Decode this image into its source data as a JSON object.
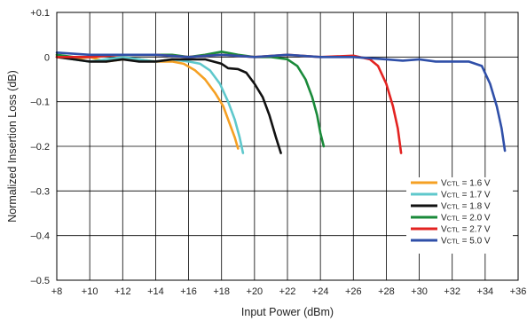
{
  "chart_data": {
    "type": "line",
    "xlabel": "Input Power (dBm)",
    "ylabel": "Normalized Insertion Loss (dB)",
    "xlim": [
      8,
      36
    ],
    "ylim": [
      -0.5,
      0.1
    ],
    "x_ticks": [
      8,
      10,
      12,
      14,
      16,
      18,
      20,
      22,
      24,
      26,
      28,
      30,
      32,
      34,
      36
    ],
    "x_tick_labels": [
      "+8",
      "+10",
      "+12",
      "+14",
      "+16",
      "+18",
      "+20",
      "+22",
      "+24",
      "+26",
      "+28",
      "+30",
      "+32",
      "+34",
      "+36"
    ],
    "y_ticks": [
      0.1,
      0,
      -0.1,
      -0.2,
      -0.3,
      -0.4,
      -0.5
    ],
    "y_tick_labels": [
      "+0.1",
      "0",
      "–0.1",
      "–0.2",
      "–0.3",
      "–0.4",
      "–0.5"
    ],
    "grid": true,
    "legend_position": "lower-right",
    "series": [
      {
        "name": "VCTL = 1.6 V",
        "label_sub": "CTL",
        "label_rest": " = 1.6 V",
        "color": "#f5a023",
        "points": [
          [
            8,
            0.005
          ],
          [
            9,
            -0.005
          ],
          [
            10,
            0.0
          ],
          [
            11,
            -0.01
          ],
          [
            12,
            -0.005
          ],
          [
            13,
            -0.005
          ],
          [
            14,
            -0.01
          ],
          [
            15,
            -0.01
          ],
          [
            15.7,
            -0.015
          ],
          [
            16.4,
            -0.03
          ],
          [
            17,
            -0.05
          ],
          [
            17.6,
            -0.08
          ],
          [
            18.1,
            -0.11
          ],
          [
            18.5,
            -0.15
          ],
          [
            18.8,
            -0.18
          ],
          [
            19.0,
            -0.205
          ]
        ]
      },
      {
        "name": "VCTL = 1.7 V",
        "label_sub": "CTL",
        "label_rest": " = 1.7 V",
        "color": "#5fc8cc",
        "points": [
          [
            8,
            0.0
          ],
          [
            9,
            -0.005
          ],
          [
            10,
            -0.01
          ],
          [
            11,
            -0.005
          ],
          [
            12,
            0.0
          ],
          [
            13,
            -0.005
          ],
          [
            14,
            -0.01
          ],
          [
            15,
            -0.005
          ],
          [
            16,
            -0.01
          ],
          [
            16.7,
            -0.015
          ],
          [
            17.3,
            -0.03
          ],
          [
            17.9,
            -0.06
          ],
          [
            18.4,
            -0.1
          ],
          [
            18.8,
            -0.14
          ],
          [
            19.1,
            -0.18
          ],
          [
            19.3,
            -0.215
          ]
        ]
      },
      {
        "name": "VCTL = 1.8 V",
        "label_sub": "CTL",
        "label_rest": " = 1.8 V",
        "color": "#111111",
        "points": [
          [
            8,
            0.0
          ],
          [
            9,
            -0.005
          ],
          [
            10,
            -0.01
          ],
          [
            11,
            -0.01
          ],
          [
            12,
            -0.005
          ],
          [
            13,
            -0.01
          ],
          [
            14,
            -0.01
          ],
          [
            15,
            -0.005
          ],
          [
            16,
            -0.005
          ],
          [
            17,
            -0.005
          ],
          [
            17.5,
            -0.01
          ],
          [
            18,
            -0.015
          ],
          [
            18.4,
            -0.025
          ],
          [
            19,
            -0.027
          ],
          [
            19.5,
            -0.035
          ],
          [
            20,
            -0.06
          ],
          [
            20.5,
            -0.09
          ],
          [
            20.9,
            -0.13
          ],
          [
            21.3,
            -0.18
          ],
          [
            21.6,
            -0.215
          ]
        ]
      },
      {
        "name": "VCTL = 2.0 V",
        "label_sub": "CTL",
        "label_rest": " = 2.0 V",
        "color": "#1a8a3a",
        "points": [
          [
            8,
            0.005
          ],
          [
            9,
            0.0
          ],
          [
            10,
            0.0
          ],
          [
            11,
            0.005
          ],
          [
            12,
            0.005
          ],
          [
            13,
            0.005
          ],
          [
            14,
            0.005
          ],
          [
            15,
            0.005
          ],
          [
            16,
            0.0
          ],
          [
            17,
            0.005
          ],
          [
            18,
            0.012
          ],
          [
            19,
            0.005
          ],
          [
            20,
            0.0
          ],
          [
            21,
            0.0
          ],
          [
            22,
            -0.005
          ],
          [
            22.6,
            -0.02
          ],
          [
            23.1,
            -0.05
          ],
          [
            23.5,
            -0.09
          ],
          [
            23.8,
            -0.13
          ],
          [
            24.0,
            -0.17
          ],
          [
            24.2,
            -0.2
          ]
        ]
      },
      {
        "name": "VCTL = 2.7 V",
        "label_sub": "CTL",
        "label_rest": " = 2.7 V",
        "color": "#e32321",
        "points": [
          [
            8,
            0.0
          ],
          [
            10,
            0.0
          ],
          [
            12,
            0.005
          ],
          [
            14,
            0.005
          ],
          [
            16,
            0.0
          ],
          [
            18,
            0.005
          ],
          [
            20,
            0.0
          ],
          [
            22,
            0.005
          ],
          [
            24,
            0.0
          ],
          [
            26,
            0.003
          ],
          [
            27,
            -0.005
          ],
          [
            27.5,
            -0.02
          ],
          [
            28,
            -0.06
          ],
          [
            28.4,
            -0.11
          ],
          [
            28.7,
            -0.16
          ],
          [
            28.9,
            -0.215
          ]
        ]
      },
      {
        "name": "VCTL = 5.0 V",
        "label_sub": "CTL",
        "label_rest": " = 5.0 V",
        "color": "#2f4fa8",
        "points": [
          [
            8,
            0.01
          ],
          [
            10,
            0.005
          ],
          [
            12,
            0.005
          ],
          [
            14,
            0.005
          ],
          [
            16,
            0.0
          ],
          [
            18,
            0.005
          ],
          [
            20,
            0.0
          ],
          [
            22,
            0.005
          ],
          [
            24,
            0.0
          ],
          [
            26,
            0.0
          ],
          [
            28,
            -0.005
          ],
          [
            29,
            -0.008
          ],
          [
            30,
            -0.005
          ],
          [
            31,
            -0.01
          ],
          [
            32,
            -0.01
          ],
          [
            33,
            -0.01
          ],
          [
            33.8,
            -0.02
          ],
          [
            34.3,
            -0.06
          ],
          [
            34.7,
            -0.11
          ],
          [
            35.0,
            -0.16
          ],
          [
            35.2,
            -0.21
          ]
        ]
      }
    ]
  }
}
